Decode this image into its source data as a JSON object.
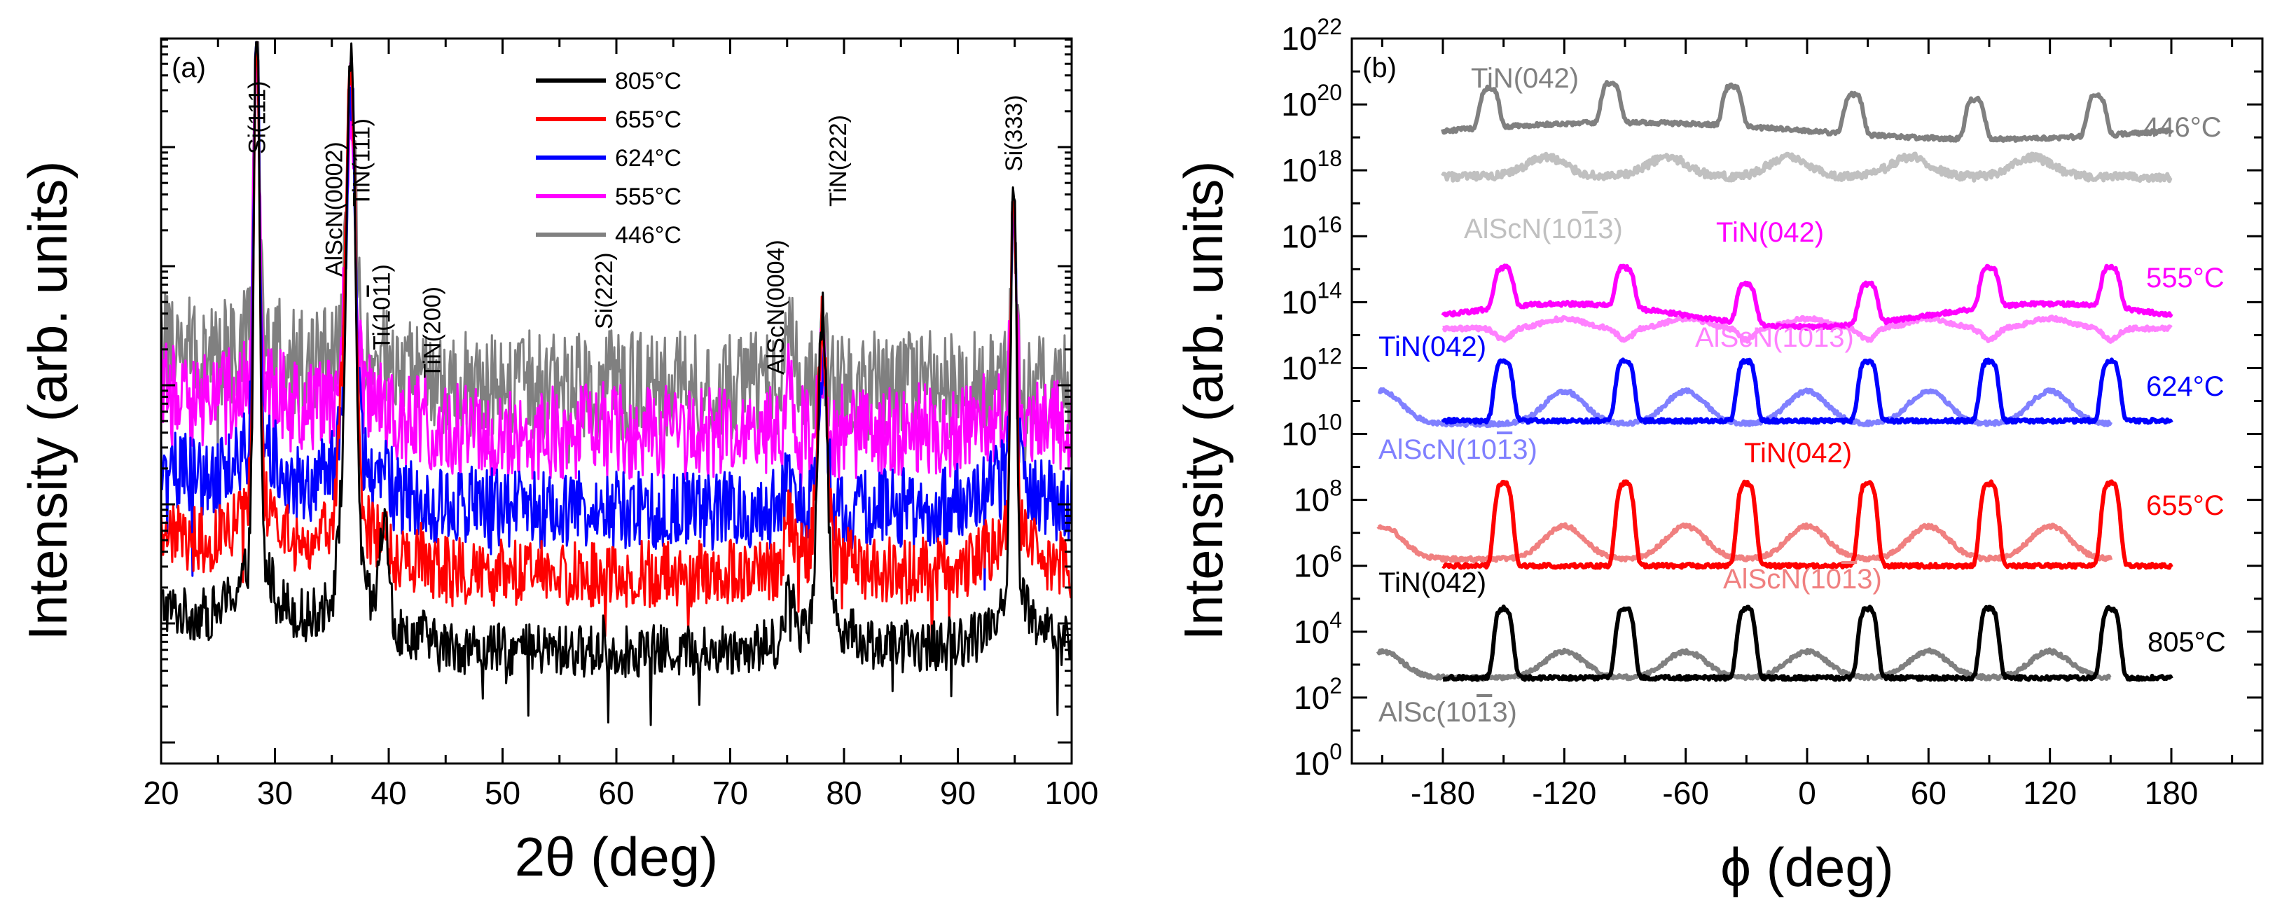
{
  "chart_data": [
    {
      "type": "line",
      "panel_label": "(a)",
      "xlabel": "2θ (deg)",
      "ylabel": "Intensity (arb. units)",
      "xlim": [
        20,
        100
      ],
      "x_ticks": [
        "20",
        "30",
        "40",
        "50",
        "60",
        "70",
        "80",
        "90",
        "100"
      ],
      "y_scale": "log",
      "y_tick_labels_shown": false,
      "legend_position": "top-center",
      "series": [
        {
          "name": "805°C",
          "color": "#000000",
          "baseline_log": 0.75
        },
        {
          "name": "655°C",
          "color": "#ff0000",
          "baseline_log": 1.4
        },
        {
          "name": "624°C",
          "color": "#0000ff",
          "baseline_log": 1.95
        },
        {
          "name": "555°C",
          "color": "#ff00ff",
          "baseline_log": 2.6
        },
        {
          "name": "446°C",
          "color": "#808080",
          "baseline_log": 3.0
        }
      ],
      "peaks": [
        {
          "label": "Si(111)",
          "two_theta": 28.4,
          "intensity_log": 5.45
        },
        {
          "label": "AlScN(0002)",
          "two_theta": 35.9,
          "intensity_log": 2.2
        },
        {
          "label": "TiN(111)",
          "two_theta": 36.7,
          "intensity_log": 5.05
        },
        {
          "label": "Ti(10",
          "label_bar": "1",
          "label_end": "1)",
          "two_theta": 39.6,
          "intensity_log": 1.6
        },
        {
          "label": "TiN(200)",
          "two_theta": 42.8,
          "intensity_log": 1.0
        },
        {
          "label": "Si(222)",
          "two_theta": 58.9,
          "intensity_log": 1.6
        },
        {
          "label": "AlScN(0004)",
          "two_theta": 75.2,
          "intensity_log": 0.9
        },
        {
          "label": "TiN(222)",
          "two_theta": 78.1,
          "intensity_log": 3.25
        },
        {
          "label": "Si(333)",
          "two_theta": 94.9,
          "intensity_log": 4.3
        }
      ]
    },
    {
      "type": "line",
      "panel_label": "(b)",
      "xlabel": "ϕ (deg)",
      "ylabel": "Intensity (arb. units)",
      "xlim": [
        -225,
        225
      ],
      "x_ticks": [
        "-180",
        "-120",
        "-60",
        "0",
        "60",
        "120",
        "180"
      ],
      "y_scale": "log",
      "ylim_exponent": [
        0,
        22
      ],
      "y_tick_exponents": [
        "0",
        "2",
        "4",
        "6",
        "8",
        "10",
        "12",
        "14",
        "16",
        "18",
        "20",
        "22"
      ],
      "series": [
        {
          "temperature": "446°C",
          "color": "#808080",
          "light_color": "#c0c0c0",
          "tin_label": "TiN(042)",
          "alscn_label": "AlScN(10",
          "alscn_bar": "1",
          "alscn_end": "3)",
          "tin_baseline_exp": 19.2,
          "tin_peak_exp": 20.4,
          "alscn_baseline_exp": 17.8,
          "alscn_peak_exp": 18.4,
          "tin_peaks_deg": [
            -157,
            -97,
            -37,
            23,
            83,
            143
          ],
          "alscn_peaks_deg": [
            -129,
            -69,
            -9,
            51,
            111
          ]
        },
        {
          "temperature": "555°C",
          "color": "#ff00ff",
          "light_color": "#ff80ff",
          "tin_label": "TiN(042)",
          "alscn_label": "AlScN(10",
          "alscn_bar": "1",
          "alscn_end": "3)",
          "tin_baseline_exp": 13.6,
          "tin_peak_exp": 14.8,
          "alscn_baseline_exp": 13.2,
          "alscn_peak_exp": 13.5,
          "tin_peaks_deg": [
            -150,
            -90,
            -30,
            30,
            90,
            150
          ],
          "alscn_peaks_deg": [
            -120,
            -60,
            0,
            60,
            120
          ]
        },
        {
          "temperature": "624°C",
          "color": "#0000ff",
          "light_color": "#8080ff",
          "tin_label": "TiN(042)",
          "alscn_label": "AlScN(10",
          "alscn_bar": "1",
          "alscn_end": "3)",
          "tin_baseline_exp": 10.4,
          "tin_peak_exp": 12.2,
          "alscn_baseline_exp": 10.3,
          "alscn_peak_exp": 11.3,
          "tin_peaks_deg": [
            -150,
            -90,
            -30,
            30,
            90,
            150
          ],
          "alscn_peaks_deg": [
            -210,
            -120,
            -60,
            0,
            60,
            120
          ]
        },
        {
          "temperature": "655°C",
          "color": "#ff0000",
          "light_color": "#f08080",
          "tin_label": "TiN(042)",
          "alscn_label": "AlScN(10",
          "alscn_bar": "1",
          "alscn_end": "3)",
          "tin_baseline_exp": 6.0,
          "tin_peak_exp": 8.5,
          "alscn_baseline_exp": 6.2,
          "alscn_peak_exp": 7.2,
          "tin_peaks_deg": [
            -150,
            -90,
            -30,
            30,
            90,
            150
          ],
          "alscn_peaks_deg": [
            -210,
            -120,
            -60,
            0,
            60,
            120
          ]
        },
        {
          "temperature": "805°C",
          "color": "#000000",
          "light_color": "#808080",
          "tin_label": "TiN(042)",
          "alscn_label": "AlSc(10",
          "alscn_bar": "1",
          "alscn_end": "3)",
          "tin_baseline_exp": 2.6,
          "tin_peak_exp": 4.7,
          "alscn_baseline_exp": 2.6,
          "alscn_peak_exp": 3.4,
          "tin_peaks_deg": [
            -150,
            -90,
            -30,
            30,
            90,
            150
          ],
          "alscn_peaks_deg": [
            -210,
            -120,
            -60,
            0,
            60,
            120
          ]
        }
      ]
    }
  ]
}
